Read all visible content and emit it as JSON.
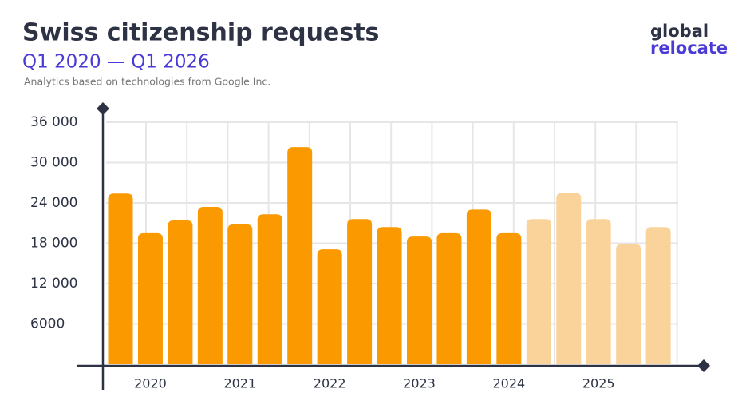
{
  "chart_data": {
    "type": "bar",
    "title": "Swiss citizenship requests",
    "subtitle": "Q1 2020 — Q1 2026",
    "note": "Analytics based on technologies from Google Inc.",
    "logo": [
      "global",
      "relocate"
    ],
    "categories": [
      null,
      "2020",
      null,
      null,
      "2021",
      null,
      null,
      "2022",
      null,
      null,
      "2023",
      null,
      null,
      "2024",
      null,
      null,
      "2025",
      null,
      null
    ],
    "values": [
      25400,
      19500,
      21400,
      23400,
      20800,
      22300,
      32300,
      17100,
      21600,
      20400,
      19000,
      19500,
      23000,
      19500,
      21600,
      25500,
      21600,
      17900,
      20400
    ],
    "colors": [
      "#fb9900",
      "#fb9900",
      "#fb9900",
      "#fb9900",
      "#fb9900",
      "#fb9900",
      "#fb9900",
      "#fb9900",
      "#fb9900",
      "#fb9900",
      "#fb9900",
      "#fb9900",
      "#fb9900",
      "#fb9900",
      "#fad39b",
      "#fad39b",
      "#fad39b",
      "#fad39b",
      "#fad39b"
    ],
    "ylim": [
      0,
      36000
    ],
    "yticks": [
      6000,
      {
        "value": 12000,
        "label": "12 000"
      },
      {
        "value": 18000,
        "label": "18 000"
      },
      {
        "value": 24000,
        "label": "24 000"
      },
      {
        "value": 30000,
        "label": "30 000"
      },
      {
        "value": 36000,
        "label": "36 000"
      }
    ],
    "grid": true
  }
}
